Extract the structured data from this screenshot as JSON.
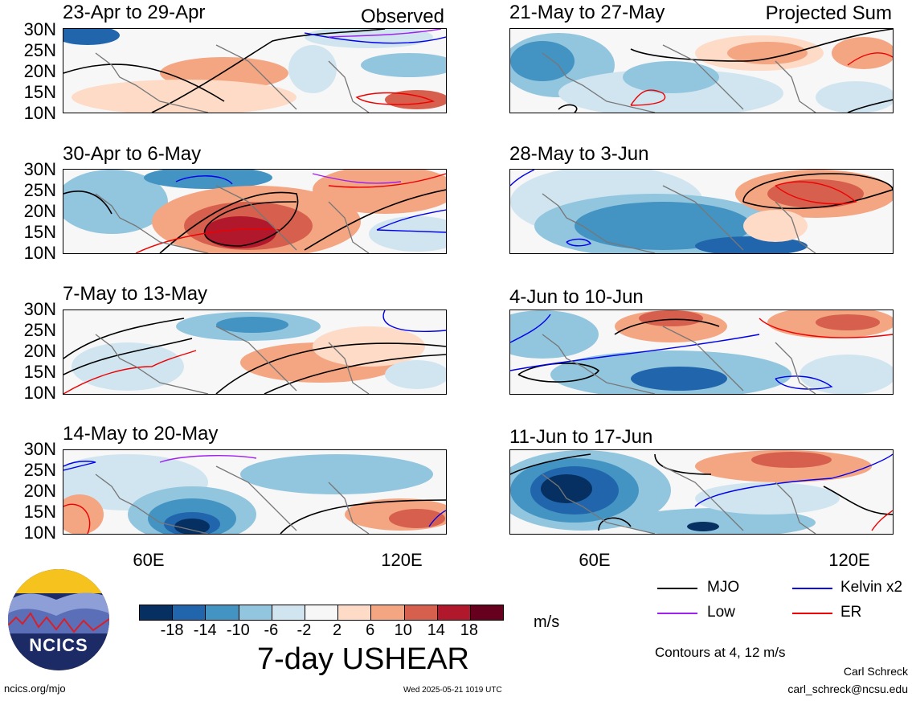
{
  "header": {
    "observed": "Observed",
    "projected": "Projected Sum"
  },
  "panels": {
    "left": [
      {
        "title": "23-Apr to 29-Apr"
      },
      {
        "title": "30-Apr to 6-May"
      },
      {
        "title": "7-May to 13-May"
      },
      {
        "title": "14-May to 20-May"
      }
    ],
    "right": [
      {
        "title": "21-May to 27-May"
      },
      {
        "title": "28-May to 3-Jun"
      },
      {
        "title": "4-Jun to 10-Jun"
      },
      {
        "title": "11-Jun to 17-Jun"
      }
    ]
  },
  "axes": {
    "lat_labels": [
      "30N",
      "25N",
      "20N",
      "15N",
      "10N"
    ],
    "lon_labels": [
      "60E",
      "120E"
    ]
  },
  "colorbar": {
    "title": "7-day USHEAR",
    "unit": "m/s",
    "ticks": [
      "-18",
      "-14",
      "-10",
      "-6",
      "-2",
      "2",
      "6",
      "10",
      "14",
      "18"
    ],
    "colors": [
      "#053061",
      "#2166ac",
      "#4393c3",
      "#92c5de",
      "#d1e5f0",
      "#f7f7f7",
      "#fddbc7",
      "#f4a582",
      "#d6604d",
      "#b2182b",
      "#67001f"
    ]
  },
  "legend": {
    "mjo": "MJO",
    "kelvin": "Kelvin x2",
    "low": "Low",
    "er": "ER",
    "contours": "Contours at 4, 12 m/s",
    "colors": {
      "mjo": "#000000",
      "kelvin": "#0000ee",
      "low": "#a020f0",
      "er": "#ee0000"
    }
  },
  "footer": {
    "url": "ncics.org/mjo",
    "timestamp": "Wed 2025-05-21 1019 UTC",
    "author": "Carl Schreck",
    "email": "carl_schreck@ncsu.edu"
  },
  "logo": {
    "text": "NCICS"
  }
}
